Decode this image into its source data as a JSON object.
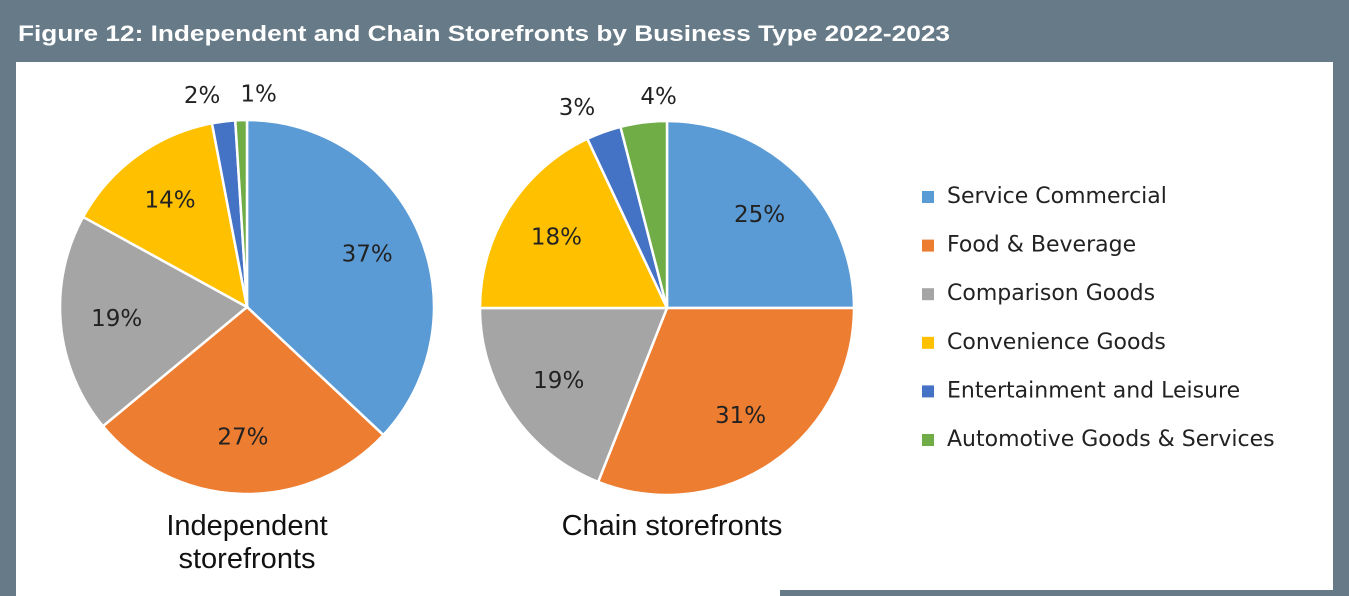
{
  "chart_data": [
    {
      "type": "pie",
      "title": "Figure 12: Independent and Chain Storefronts by Business Type 2022-2023",
      "subtitle": "Independent storefronts",
      "categories": [
        "Service Commercial",
        "Food & Beverage",
        "Comparison Goods",
        "Convenience Goods",
        "Entertainment and Leisure",
        "Automotive Goods & Services"
      ],
      "colors": [
        "#5b9bd5",
        "#ed7d31",
        "#a5a5a5",
        "#ffc000",
        "#4472c4",
        "#70ad47"
      ],
      "values": [
        37,
        27,
        19,
        14,
        2,
        1
      ],
      "value_labels": [
        "37%",
        "27%",
        "19%",
        "14%",
        "2%",
        "1%"
      ],
      "legend": "right"
    },
    {
      "type": "pie",
      "subtitle": "Chain storefronts",
      "values": [
        25,
        31,
        19,
        18,
        3,
        4
      ],
      "value_labels": [
        "25%",
        "31%",
        "19%",
        "18%",
        "3%",
        "4%"
      ]
    }
  ]
}
